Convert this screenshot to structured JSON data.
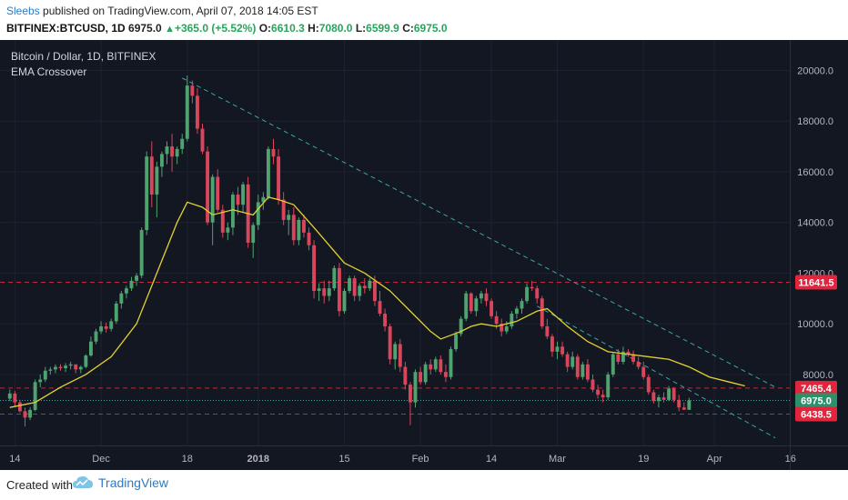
{
  "header": {
    "author": "Sleebs",
    "published_text": " published on TradingView.com, April 07, 2018 14:05 EST",
    "symbol": "BITFINEX:BTCUSD, 1D",
    "price": "6975.0",
    "change": "+365.0 (+5.52%)",
    "o_label": "O:",
    "o_value": "6610.3",
    "h_label": "H:",
    "h_value": "7080.0",
    "l_label": "L:",
    "l_value": "6599.9",
    "c_label": "C:",
    "c_value": "6975.0"
  },
  "footer": {
    "created_with": "Created with",
    "brand": "TradingView"
  },
  "colors": {
    "background": "#131722",
    "up": "#4ea36f",
    "down": "#d9455a",
    "ema": "#e3d22e",
    "trendline": "#3aa6a6",
    "level_line": "#c0293a",
    "price_line": "#3aa6a6"
  },
  "chart_data": {
    "type": "candlestick",
    "title": "Bitcoin / Dollar, 1D, BITFINEX",
    "indicator": "EMA Crossover",
    "ylim": [
      5200,
      21200
    ],
    "y_ticks": [
      "8000.0",
      "10000.0",
      "12000.0",
      "14000.0",
      "16000.0",
      "18000.0",
      "20000.0"
    ],
    "y_tick_values": [
      8000,
      10000,
      12000,
      14000,
      16000,
      18000,
      20000
    ],
    "x_labels": [
      "14",
      "Dec",
      "18",
      "2018",
      "15",
      "Feb",
      "14",
      "Mar",
      "19",
      "Apr",
      "16"
    ],
    "x_label_bars": [
      1,
      18,
      35,
      49,
      66,
      81,
      95,
      108,
      125,
      139,
      154
    ],
    "bar_count": 154,
    "price_labels": [
      {
        "text": "11641.5",
        "value": 11641.5,
        "kind": "level"
      },
      {
        "text": "7465.4",
        "value": 7465.4,
        "kind": "level"
      },
      {
        "text": "6975.0",
        "value": 6975.0,
        "kind": "current"
      },
      {
        "text": "6438.5",
        "value": 6438.5,
        "kind": "level"
      }
    ],
    "trendlines": [
      {
        "from": [
          34,
          19700
        ],
        "to": [
          151,
          7500
        ]
      },
      {
        "from": [
          104,
          10700
        ],
        "to": [
          151,
          5500
        ]
      }
    ],
    "candles": [
      [
        7050,
        7400,
        6950,
        7250
      ],
      [
        7250,
        7350,
        6700,
        6900
      ],
      [
        6900,
        7000,
        6500,
        6550
      ],
      [
        6550,
        6700,
        5950,
        6300
      ],
      [
        6300,
        6700,
        6200,
        6600
      ],
      [
        6600,
        7800,
        6550,
        7700
      ],
      [
        7700,
        8000,
        7500,
        7800
      ],
      [
        7800,
        8300,
        7700,
        8150
      ],
      [
        8150,
        8300,
        8000,
        8200
      ],
      [
        8200,
        8400,
        8050,
        8300
      ],
      [
        8300,
        8400,
        8150,
        8250
      ],
      [
        8250,
        8450,
        8100,
        8350
      ],
      [
        8350,
        8500,
        8200,
        8400
      ],
      [
        8400,
        8400,
        8050,
        8200
      ],
      [
        8200,
        8350,
        8050,
        8300
      ],
      [
        8300,
        8800,
        8250,
        8750
      ],
      [
        8750,
        9500,
        8700,
        9300
      ],
      [
        9300,
        9800,
        9200,
        9700
      ],
      [
        9700,
        10100,
        9600,
        9900
      ],
      [
        9900,
        10050,
        9650,
        9800
      ],
      [
        9800,
        10200,
        9700,
        10100
      ],
      [
        10100,
        10900,
        10000,
        10800
      ],
      [
        10800,
        11300,
        10600,
        11200
      ],
      [
        11200,
        11500,
        11000,
        11400
      ],
      [
        11400,
        11850,
        11300,
        11700
      ],
      [
        11700,
        12000,
        11500,
        11900
      ],
      [
        11900,
        13800,
        11800,
        13700
      ],
      [
        13700,
        16800,
        13500,
        16600
      ],
      [
        16600,
        17200,
        14600,
        15100
      ],
      [
        15100,
        16400,
        14200,
        16200
      ],
      [
        16200,
        16800,
        15800,
        16700
      ],
      [
        16700,
        17200,
        16300,
        17000
      ],
      [
        17000,
        17500,
        16000,
        16600
      ],
      [
        16600,
        17000,
        16300,
        16900
      ],
      [
        16900,
        17500,
        16700,
        17300
      ],
      [
        17300,
        19800,
        17200,
        19400
      ],
      [
        19400,
        19600,
        18700,
        19000
      ],
      [
        19000,
        19300,
        17500,
        17700
      ],
      [
        17700,
        17900,
        16700,
        16800
      ],
      [
        16800,
        17000,
        13900,
        14000
      ],
      [
        14000,
        15900,
        13100,
        15800
      ],
      [
        15800,
        16100,
        14400,
        14500
      ],
      [
        14500,
        14700,
        13400,
        13600
      ],
      [
        13600,
        14000,
        13300,
        13800
      ],
      [
        13800,
        15200,
        13500,
        15100
      ],
      [
        15100,
        15400,
        14300,
        14700
      ],
      [
        14700,
        15600,
        14400,
        15500
      ],
      [
        15500,
        15800,
        13000,
        13200
      ],
      [
        13200,
        14000,
        12600,
        13900
      ],
      [
        13900,
        15100,
        13700,
        14800
      ],
      [
        14800,
        15200,
        14500,
        15000
      ],
      [
        15000,
        17000,
        14900,
        16900
      ],
      [
        16900,
        17300,
        16300,
        16600
      ],
      [
        16600,
        16900,
        14700,
        14900
      ],
      [
        14900,
        15200,
        13900,
        14100
      ],
      [
        14100,
        14500,
        13500,
        14300
      ],
      [
        14300,
        14600,
        13100,
        13300
      ],
      [
        13300,
        14200,
        13100,
        14100
      ],
      [
        14100,
        14300,
        13400,
        13600
      ],
      [
        13600,
        13800,
        12900,
        13100
      ],
      [
        13100,
        13300,
        11000,
        11300
      ],
      [
        11300,
        11600,
        10900,
        11400
      ],
      [
        11400,
        11700,
        10800,
        11100
      ],
      [
        11100,
        11700,
        10900,
        11400
      ],
      [
        11400,
        12300,
        11300,
        12200
      ],
      [
        12200,
        12400,
        10300,
        10500
      ],
      [
        10500,
        11400,
        10400,
        11300
      ],
      [
        11300,
        11900,
        11200,
        11800
      ],
      [
        11800,
        11900,
        10900,
        11100
      ],
      [
        11100,
        11600,
        10900,
        11500
      ],
      [
        11500,
        11800,
        11200,
        11400
      ],
      [
        11400,
        11800,
        11300,
        11700
      ],
      [
        11700,
        11900,
        10700,
        10900
      ],
      [
        10900,
        11300,
        10300,
        10400
      ],
      [
        10400,
        10600,
        9700,
        9900
      ],
      [
        9900,
        10000,
        8400,
        8600
      ],
      [
        8600,
        9300,
        8200,
        9200
      ],
      [
        9200,
        9400,
        8100,
        8300
      ],
      [
        8300,
        8500,
        7400,
        7600
      ],
      [
        7600,
        7700,
        6000,
        6900
      ],
      [
        6900,
        8200,
        6700,
        8100
      ],
      [
        8100,
        8300,
        7600,
        7700
      ],
      [
        7700,
        8500,
        7600,
        8400
      ],
      [
        8400,
        8600,
        8000,
        8200
      ],
      [
        8200,
        8700,
        8100,
        8600
      ],
      [
        8600,
        8750,
        8000,
        8100
      ],
      [
        8100,
        8400,
        7700,
        7900
      ],
      [
        7900,
        9100,
        7800,
        9000
      ],
      [
        9000,
        9700,
        8900,
        9600
      ],
      [
        9600,
        10300,
        9500,
        10200
      ],
      [
        10200,
        11300,
        10100,
        11200
      ],
      [
        11200,
        11250,
        10400,
        10500
      ],
      [
        10500,
        11100,
        10300,
        11000
      ],
      [
        11000,
        11300,
        10800,
        11200
      ],
      [
        11200,
        11400,
        10700,
        10900
      ],
      [
        10900,
        11000,
        10200,
        10300
      ],
      [
        10300,
        10500,
        9800,
        10000
      ],
      [
        10000,
        10200,
        9500,
        9700
      ],
      [
        9700,
        10100,
        9600,
        9900
      ],
      [
        9900,
        10500,
        9800,
        10400
      ],
      [
        10400,
        10700,
        10200,
        10600
      ],
      [
        10600,
        11000,
        10400,
        10900
      ],
      [
        10900,
        11600,
        10800,
        11450
      ],
      [
        11450,
        11700,
        11300,
        11400
      ],
      [
        11400,
        11500,
        10800,
        11000
      ],
      [
        11000,
        11100,
        9800,
        9900
      ],
      [
        9900,
        10200,
        9400,
        9500
      ],
      [
        9500,
        9600,
        8700,
        8900
      ],
      [
        8900,
        9300,
        8600,
        9100
      ],
      [
        9100,
        9300,
        8700,
        8800
      ],
      [
        8800,
        8900,
        8100,
        8300
      ],
      [
        8300,
        8900,
        8200,
        8700
      ],
      [
        8700,
        8800,
        7800,
        7900
      ],
      [
        7900,
        8500,
        7800,
        8400
      ],
      [
        8400,
        8600,
        7700,
        7800
      ],
      [
        7800,
        8000,
        7300,
        7400
      ],
      [
        7400,
        7600,
        7050,
        7200
      ],
      [
        7200,
        7400,
        6900,
        7100
      ],
      [
        7100,
        8100,
        7000,
        8000
      ],
      [
        8000,
        8900,
        7900,
        8800
      ],
      [
        8800,
        9000,
        8400,
        8500
      ],
      [
        8500,
        9100,
        8400,
        8900
      ],
      [
        8900,
        9000,
        8700,
        8800
      ],
      [
        8800,
        8950,
        8400,
        8500
      ],
      [
        8500,
        8700,
        8200,
        8300
      ],
      [
        8300,
        8500,
        7800,
        7900
      ],
      [
        7900,
        8000,
        7200,
        7300
      ],
      [
        7300,
        7400,
        6850,
        6950
      ],
      [
        6950,
        7200,
        6700,
        7100
      ],
      [
        7100,
        7300,
        6900,
        7000
      ],
      [
        7000,
        7550,
        6950,
        7450
      ],
      [
        7450,
        7500,
        6900,
        7000
      ],
      [
        7000,
        7200,
        6550,
        6700
      ],
      [
        6700,
        6900,
        6600,
        6610
      ],
      [
        6610,
        7080,
        6600,
        6975
      ]
    ],
    "ema": [
      [
        0,
        6700
      ],
      [
        5,
        6900
      ],
      [
        10,
        7500
      ],
      [
        15,
        8000
      ],
      [
        20,
        8700
      ],
      [
        25,
        10000
      ],
      [
        30,
        12500
      ],
      [
        33,
        14000
      ],
      [
        35,
        14800
      ],
      [
        38,
        14600
      ],
      [
        40,
        14300
      ],
      [
        44,
        14500
      ],
      [
        48,
        14300
      ],
      [
        51,
        15000
      ],
      [
        53,
        14900
      ],
      [
        56,
        14700
      ],
      [
        60,
        13800
      ],
      [
        66,
        12400
      ],
      [
        70,
        12000
      ],
      [
        75,
        11300
      ],
      [
        79,
        10500
      ],
      [
        83,
        9700
      ],
      [
        85,
        9400
      ],
      [
        89,
        9700
      ],
      [
        91,
        9900
      ],
      [
        93,
        10000
      ],
      [
        96,
        9900
      ],
      [
        100,
        10100
      ],
      [
        104,
        10500
      ],
      [
        106,
        10600
      ],
      [
        110,
        9900
      ],
      [
        114,
        9300
      ],
      [
        118,
        8900
      ],
      [
        122,
        8800
      ],
      [
        126,
        8700
      ],
      [
        130,
        8600
      ],
      [
        134,
        8300
      ],
      [
        138,
        7900
      ],
      [
        142,
        7700
      ],
      [
        145,
        7550
      ]
    ]
  }
}
